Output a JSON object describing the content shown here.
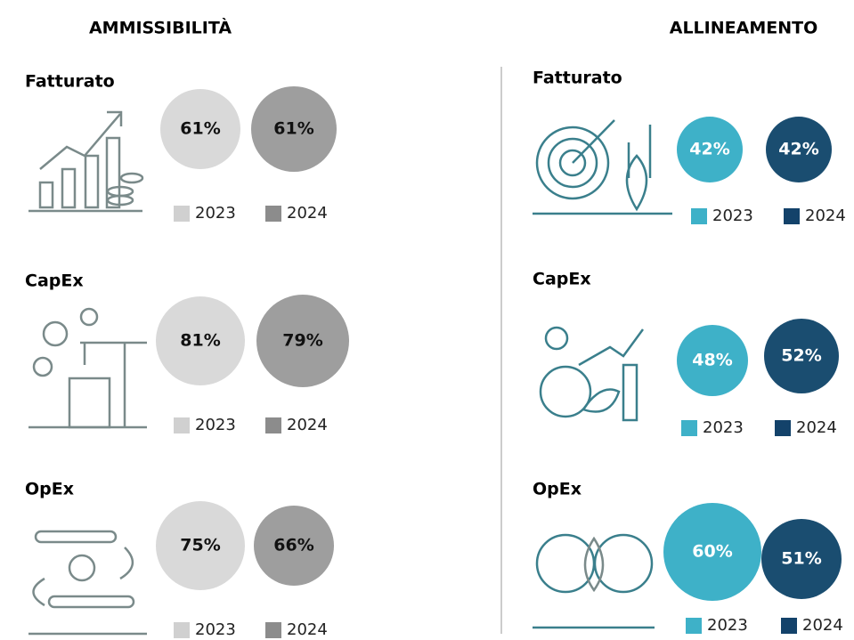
{
  "panels": [
    {
      "title": "AMMISSIBILITÀ",
      "sections": [
        {
          "label": "Fatturato",
          "values": [
            "61%",
            "61%"
          ],
          "legend": [
            "2023",
            "2024"
          ]
        },
        {
          "label": "CapEx",
          "values": [
            "81%",
            "79%"
          ],
          "legend": [
            "2023",
            "2024"
          ]
        },
        {
          "label": "OpEx",
          "values": [
            "75%",
            "66%"
          ],
          "legend": [
            "2023",
            "2024"
          ]
        }
      ]
    },
    {
      "title": "ALLINEAMENTO",
      "sections": [
        {
          "label": "Fatturato",
          "values": [
            "42%",
            "42%"
          ],
          "legend": [
            "2023",
            "2024"
          ]
        },
        {
          "label": "CapEx",
          "values": [
            "48%",
            "52%"
          ],
          "legend": [
            "2023",
            "2024"
          ]
        },
        {
          "label": "OpEx",
          "values": [
            "60%",
            "51%"
          ],
          "legend": [
            "2023",
            "2024"
          ]
        }
      ]
    }
  ]
}
